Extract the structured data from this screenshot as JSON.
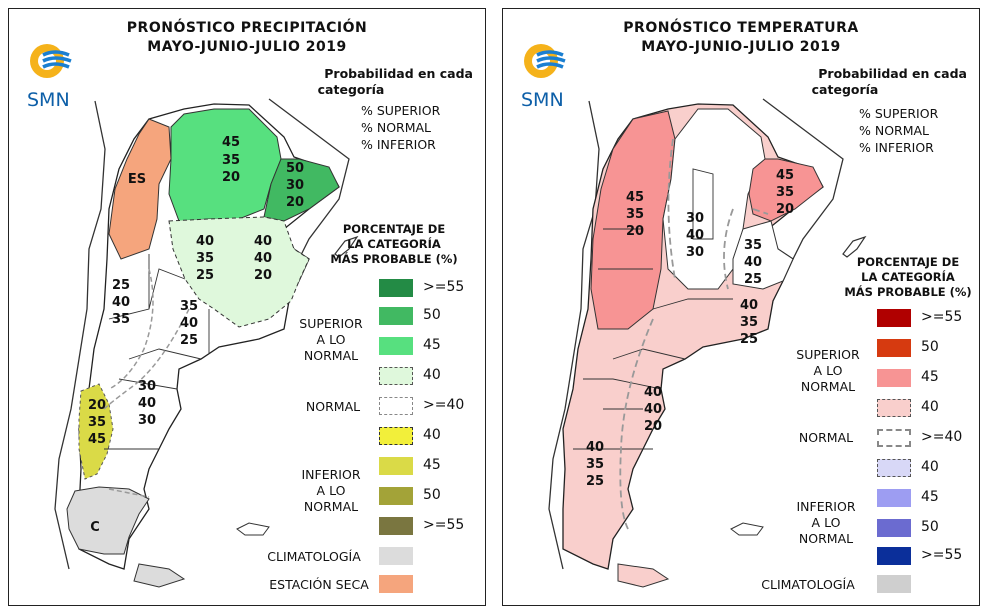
{
  "left": {
    "title_line1": "PRONÓSTICO PRECIPITACIÓN",
    "title_line2": "MAYO-JUNIO-JULIO 2019",
    "logo_text": "SMN",
    "prob_title_1": "Probabilidad en cada",
    "prob_title_2": "categoría",
    "prob_lines": [
      "% SUPERIOR",
      "% NORMAL",
      "% INFERIOR"
    ],
    "pct_title": [
      "PORCENTAJE DE",
      "LA CATEGORÍA",
      "MÁS PROBABLE (%)"
    ],
    "legend_group_superior": [
      "SUPERIOR",
      "A LO NORMAL"
    ],
    "legend_group_normal": "NORMAL",
    "legend_group_inferior": [
      "INFERIOR",
      "A LO NORMAL"
    ],
    "legend_climatologia": "CLIMATOLOGÍA",
    "legend_estacion_seca": "ESTACIÓN SECA",
    "legend_values": [
      ">=55",
      "50",
      "45",
      "40",
      ">=40",
      "40",
      "45",
      "50",
      ">=55"
    ],
    "legend_colors": [
      "#238b45",
      "#41b962",
      "#57e07f",
      "#dff8dc",
      "#ffffff",
      "#f2ef3a",
      "#dada47",
      "#a3a338",
      "#7a7640",
      "#dcdcdc",
      "#f5a57d"
    ],
    "region_labels": {
      "es": "ES",
      "c": "C",
      "north_green": [
        "45",
        "35",
        "20"
      ],
      "northeast": [
        "50",
        "30",
        "20"
      ],
      "pampa_west": [
        "40",
        "35",
        "25"
      ],
      "pampa_east": [
        "40",
        "40",
        "20"
      ],
      "cuyo": [
        "25",
        "40",
        "35"
      ],
      "center": [
        "35",
        "40",
        "25"
      ],
      "patagonia_north": [
        "30",
        "40",
        "30"
      ],
      "andes_south": [
        "20",
        "35",
        "45"
      ]
    }
  },
  "right": {
    "title_line1": "PRONÓSTICO TEMPERATURA",
    "title_line2": "MAYO-JUNIO-JULIO 2019",
    "logo_text": "SMN",
    "prob_title_1": "Probabilidad en cada",
    "prob_title_2": "categoría",
    "prob_lines": [
      "% SUPERIOR",
      "% NORMAL",
      "% INFERIOR"
    ],
    "pct_title": [
      "PORCENTAJE DE",
      "LA CATEGORÍA",
      "MÁS PROBABLE (%)"
    ],
    "legend_group_superior": [
      "SUPERIOR",
      "A LO NORMAL"
    ],
    "legend_group_normal": "NORMAL",
    "legend_group_inferior": [
      "INFERIOR",
      "A LO NORMAL"
    ],
    "legend_climatologia": "CLIMATOLOGÍA",
    "legend_values": [
      ">=55",
      "50",
      "45",
      "40",
      ">=40",
      "40",
      "45",
      "50",
      ">=55"
    ],
    "legend_colors": [
      "#b00000",
      "#d63a10",
      "#f79494",
      "#f9cfcc",
      "#ffffff",
      "#d8d8f7",
      "#9d9df2",
      "#6b6bd0",
      "#0b2f9a",
      "#cfcfcf"
    ],
    "region_labels": {
      "northwest": [
        "45",
        "35",
        "20"
      ],
      "northeast": [
        "45",
        "35",
        "20"
      ],
      "center_north": [
        "30",
        "40",
        "30"
      ],
      "east": [
        "35",
        "40",
        "25"
      ],
      "pampa": [
        "40",
        "35",
        "25"
      ],
      "patagonia_north": [
        "40",
        "40",
        "20"
      ],
      "patagonia_south": [
        "40",
        "35",
        "25"
      ]
    }
  }
}
